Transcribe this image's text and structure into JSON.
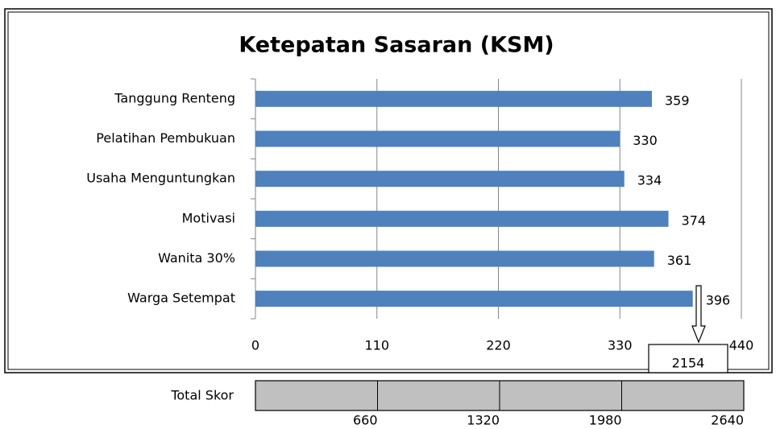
{
  "chart_data": [
    {
      "type": "bar",
      "orientation": "horizontal",
      "title": "Ketepatan Sasaran (KSM)",
      "categories": [
        "Tanggung Renteng",
        "Pelatihan Pembukuan",
        "Usaha Menguntungkan",
        "Motivasi",
        "Wanita 30%",
        "Warga Setempat"
      ],
      "values": [
        359,
        330,
        334,
        374,
        361,
        396
      ],
      "color": "#4f81bd",
      "xlim": [
        0,
        440
      ],
      "xticks": [
        0,
        110,
        220,
        330,
        440
      ],
      "grid": true,
      "annotation": 2154
    },
    {
      "type": "scale",
      "label": "Total Skor",
      "color": "#c0c0c0",
      "xlim": [
        0,
        2640
      ],
      "xticks": [
        660,
        1320,
        1980,
        2640
      ]
    }
  ]
}
